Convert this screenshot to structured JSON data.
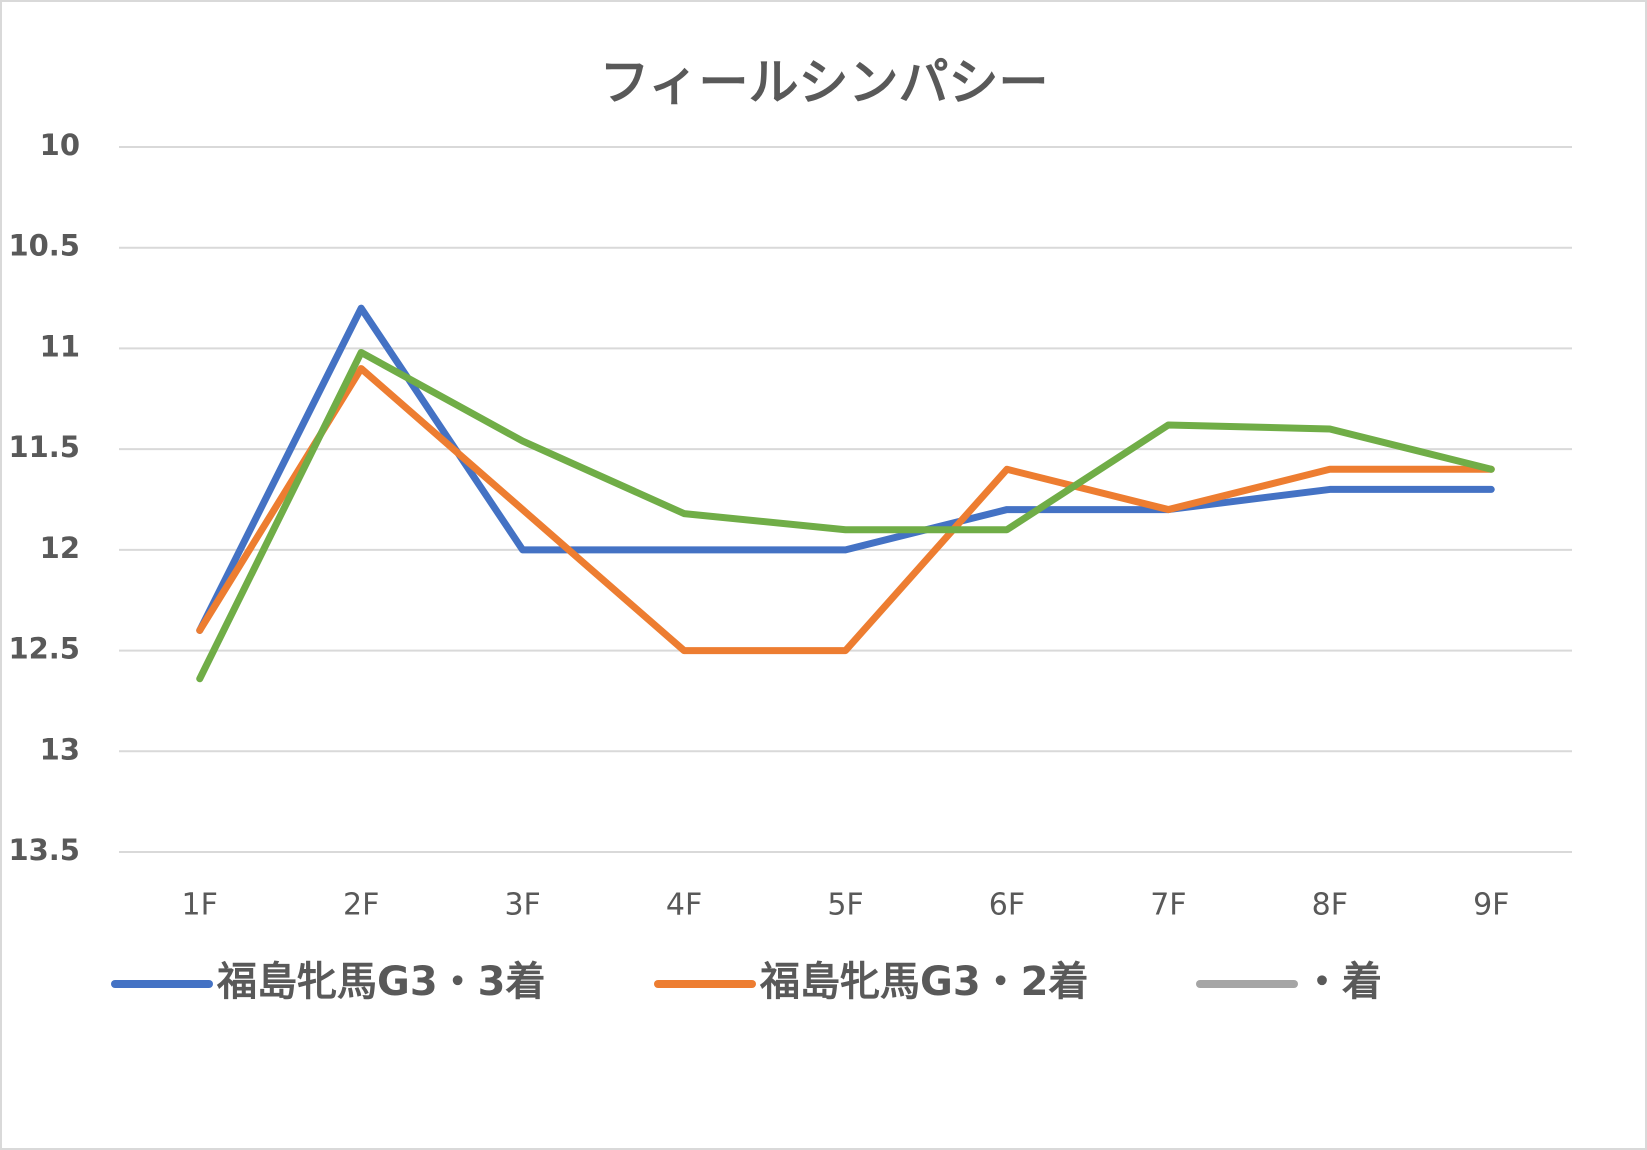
{
  "chart_data": {
    "type": "line",
    "title": "フィールシンパシー",
    "categories": [
      "1F",
      "2F",
      "3F",
      "4F",
      "5F",
      "6F",
      "7F",
      "8F",
      "9F"
    ],
    "series": [
      {
        "name": "福島牝馬G3・3着",
        "color": "#4472c4",
        "values": [
          12.4,
          10.8,
          12.0,
          12.0,
          12.0,
          11.8,
          11.8,
          11.7,
          11.7
        ]
      },
      {
        "name": "福島牝馬G3・2着",
        "color": "#ed7d31",
        "values": [
          12.4,
          11.1,
          11.8,
          12.5,
          12.5,
          11.6,
          11.8,
          11.6,
          11.6
        ]
      },
      {
        "name": "・着",
        "color": "#a5a5a5",
        "values": [
          null,
          null,
          null,
          null,
          null,
          null,
          null,
          null,
          null
        ]
      },
      {
        "color": "#70ad47",
        "values": [
          12.64,
          11.02,
          11.46,
          11.82,
          11.9,
          11.9,
          11.38,
          11.4,
          11.6
        ]
      }
    ],
    "ylim": [
      10,
      13.5
    ],
    "yticks": [
      10,
      10.5,
      11,
      11.5,
      12,
      12.5,
      13,
      13.5
    ],
    "y_reversed": true,
    "grid": true,
    "legend": "bottom"
  }
}
